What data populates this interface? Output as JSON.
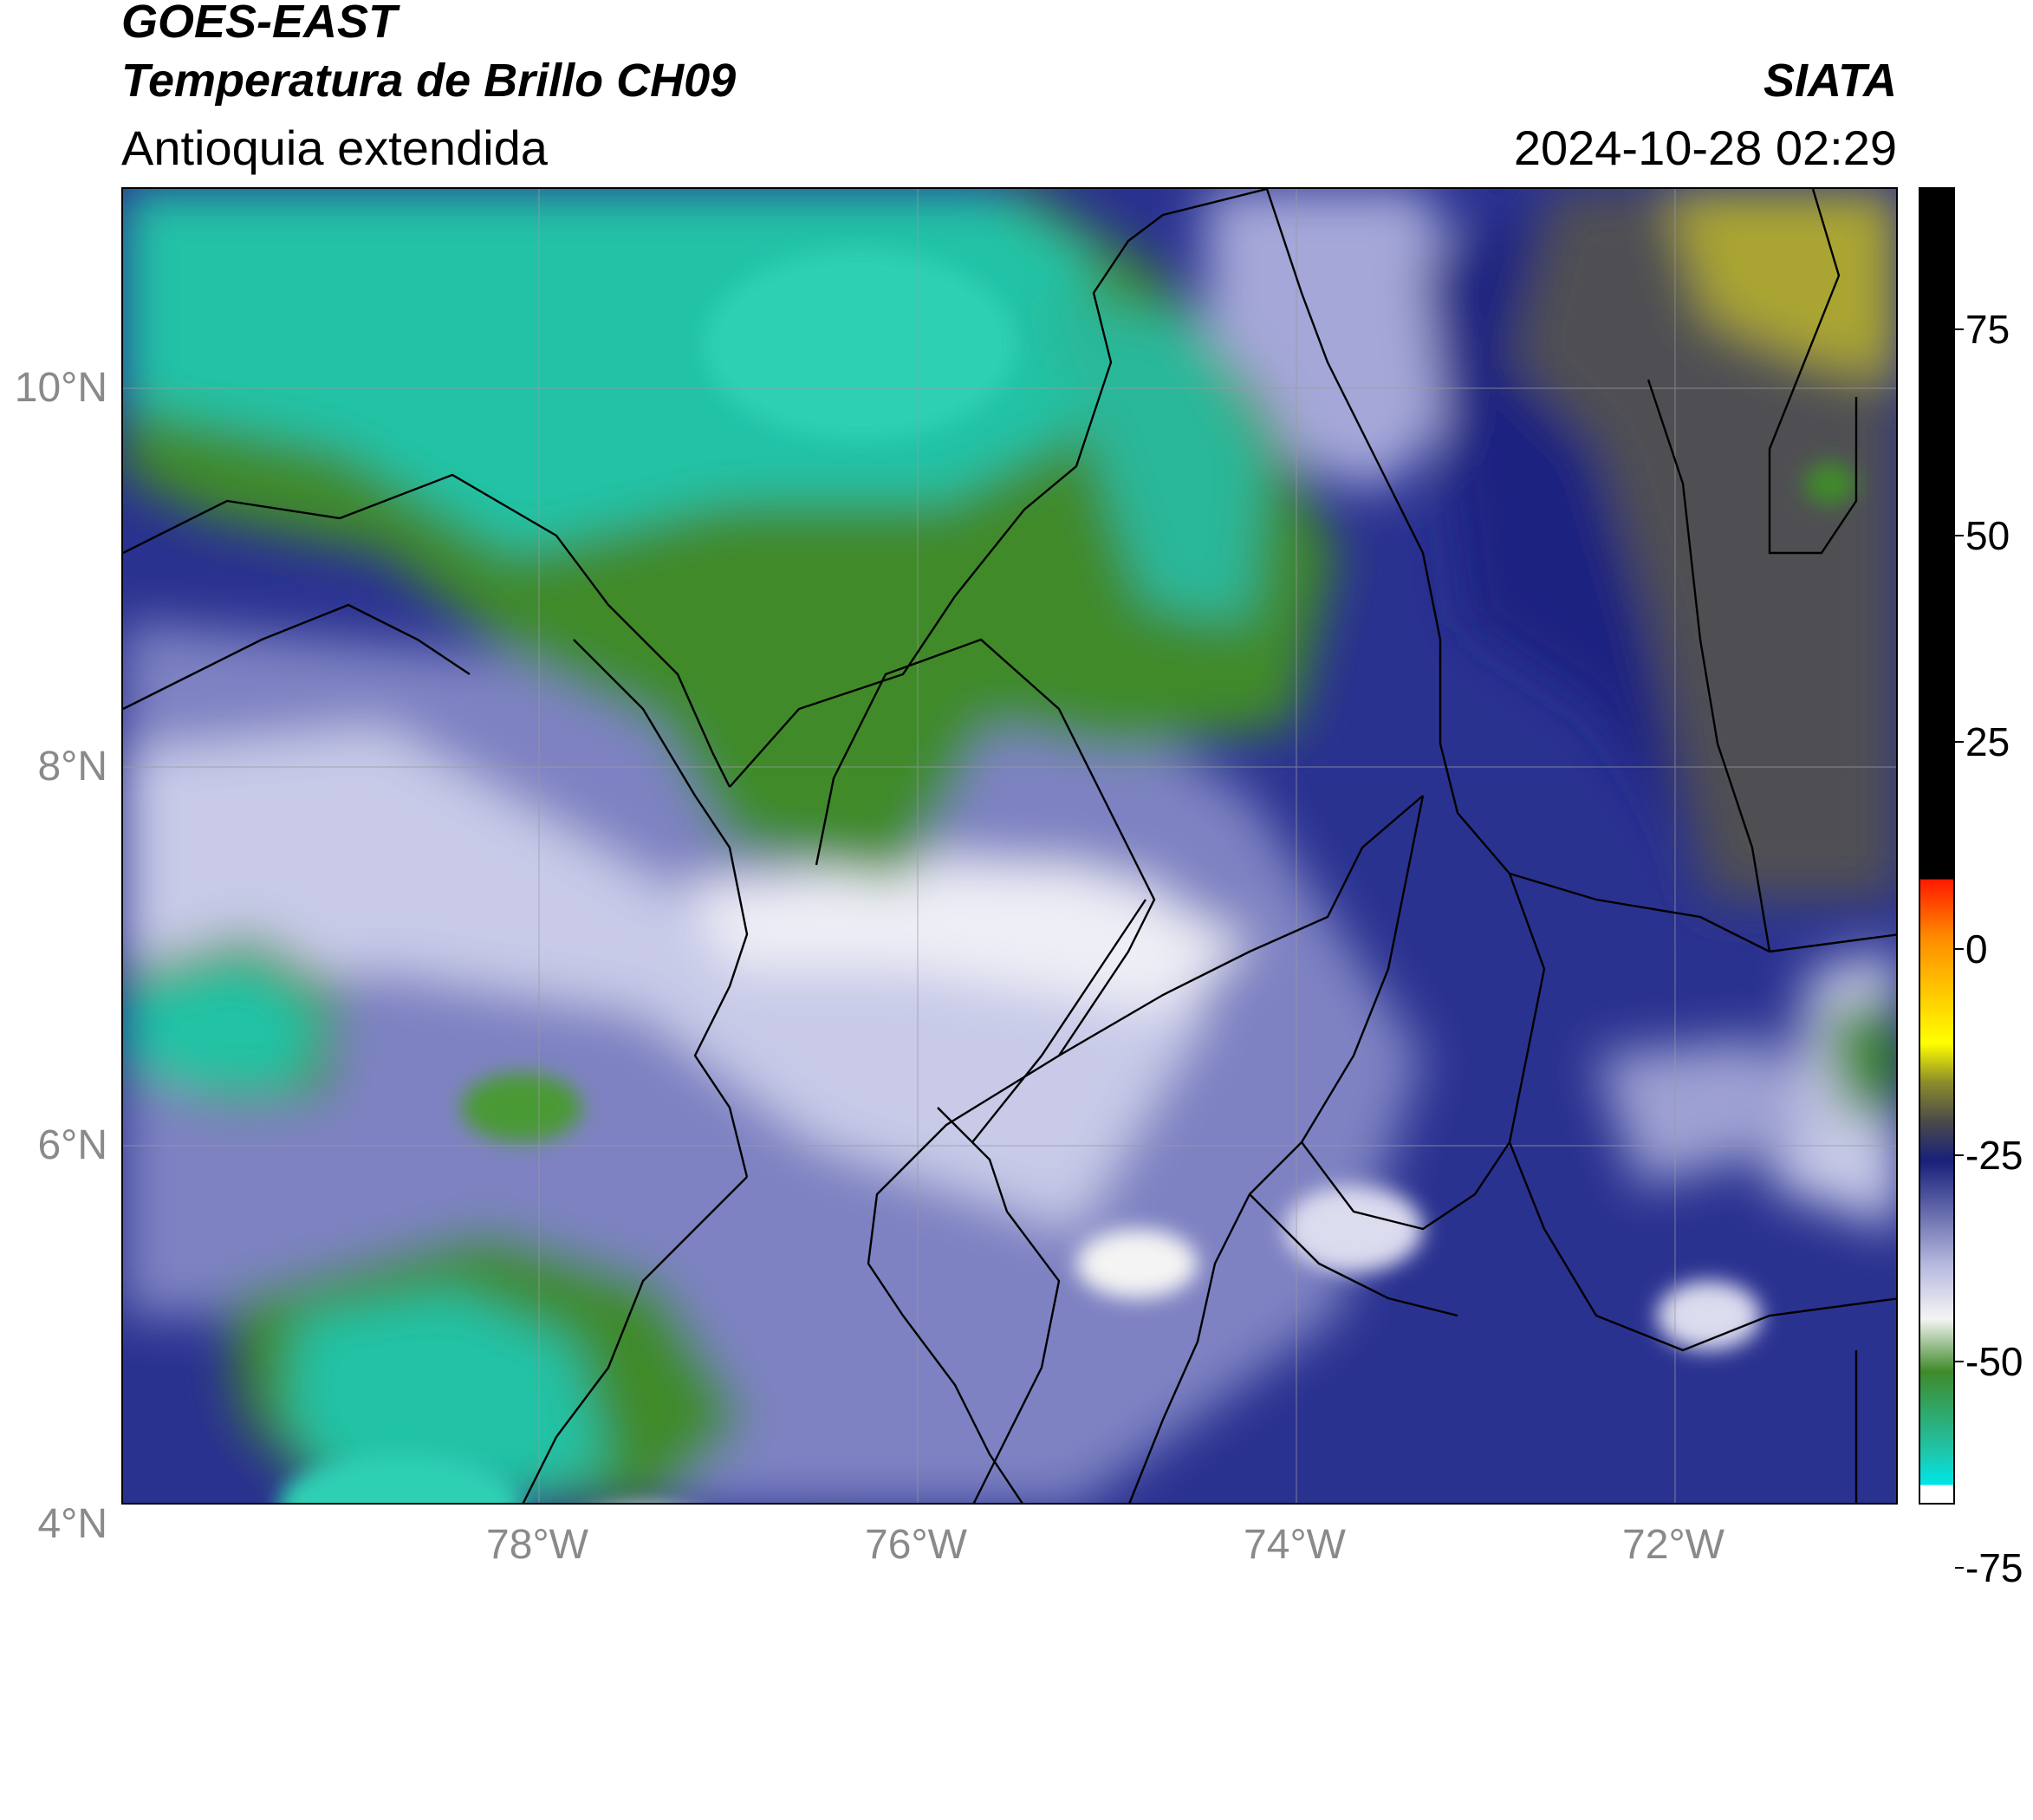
{
  "header": {
    "satellite": "GOES-EAST",
    "product": "Temperatura de Brillo CH09",
    "region": "Antioquia extendida",
    "source": "SIATA",
    "timestamp": "2024-10-28 02:29"
  },
  "axes": {
    "latitude_labels": [
      "10°N",
      "8°N",
      "6°N",
      "4°N"
    ],
    "longitude_labels": [
      "78°W",
      "76°W",
      "74°W",
      "72°W"
    ]
  },
  "colorbar": {
    "tick_labels": [
      "75",
      "50",
      "25",
      "0",
      "-25",
      "-50",
      "-75"
    ],
    "colors": {
      "black": "#000000",
      "red": "#ff1a00",
      "orange": "#ff8c00",
      "yellow": "#ffff00",
      "olive": "#8c8c2a",
      "gray": "#4a4a4a",
      "navy": "#18207a",
      "lavender": "#b8bbe0",
      "white": "#f4f4f4",
      "green": "#3f8a2a",
      "teal": "#20c4a8",
      "cyan": "#00e6e6"
    }
  }
}
